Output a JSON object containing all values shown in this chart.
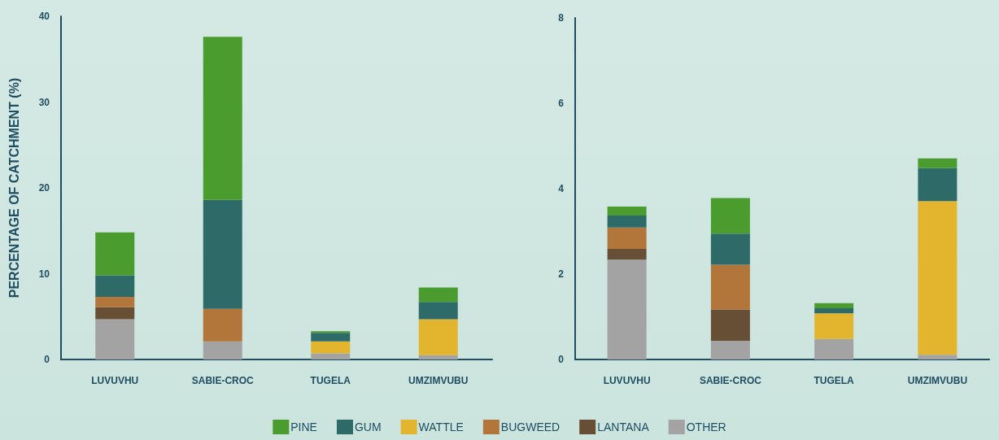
{
  "chart_data": [
    {
      "type": "bar",
      "stacked": true,
      "ylabel": "PERCENTAGE OF CATCHMENT (%)",
      "categories": [
        "LUVUVHU",
        "SABIE-CROC",
        "TUGELA",
        "UMZIMVUBU"
      ],
      "ylim": [
        0,
        40
      ],
      "yticks": [
        0,
        10,
        20,
        30,
        40
      ],
      "grid": false,
      "legend": "bottom",
      "series": [
        {
          "name": "OTHER",
          "color": "#a3a3a3",
          "values": [
            4.7,
            2.1,
            0.7,
            0.5
          ]
        },
        {
          "name": "LANTANA",
          "color": "#674f36",
          "values": [
            1.4,
            null,
            null,
            null
          ]
        },
        {
          "name": "BUGWEED",
          "color": "#b3763a",
          "values": [
            1.2,
            3.8,
            null,
            null
          ]
        },
        {
          "name": "WATTLE",
          "color": "#e3b42e",
          "values": [
            null,
            null,
            1.4,
            4.2
          ]
        },
        {
          "name": "GUM",
          "color": "#2e6b68",
          "values": [
            2.5,
            12.7,
            1.0,
            2.0
          ]
        },
        {
          "name": "PINE",
          "color": "#4a9c2f",
          "values": [
            5.0,
            19.0,
            0.2,
            1.7
          ]
        }
      ]
    },
    {
      "type": "bar",
      "stacked": true,
      "categories": [
        "LUVUVHU",
        "SABIE-CROC",
        "TUGELA",
        "UMZIMVUBU"
      ],
      "ylim": [
        0,
        8
      ],
      "yticks": [
        0,
        2,
        4,
        6,
        8
      ],
      "grid": false,
      "series": [
        {
          "color": "#a3a3a3",
          "values": [
            2.34,
            0.44,
            0.48,
            0.11
          ]
        },
        {
          "color": "#674f36",
          "values": [
            0.25,
            0.73,
            null,
            null
          ]
        },
        {
          "color": "#b3763a",
          "values": [
            0.5,
            1.05,
            null,
            null
          ]
        },
        {
          "color": "#e3b42e",
          "values": [
            null,
            null,
            0.6,
            3.6
          ]
        },
        {
          "color": "#2e6b68",
          "values": [
            0.28,
            0.73,
            0.12,
            0.77
          ]
        },
        {
          "color": "#4a9c2f",
          "values": [
            0.21,
            0.83,
            0.12,
            0.23
          ]
        }
      ]
    }
  ]
}
